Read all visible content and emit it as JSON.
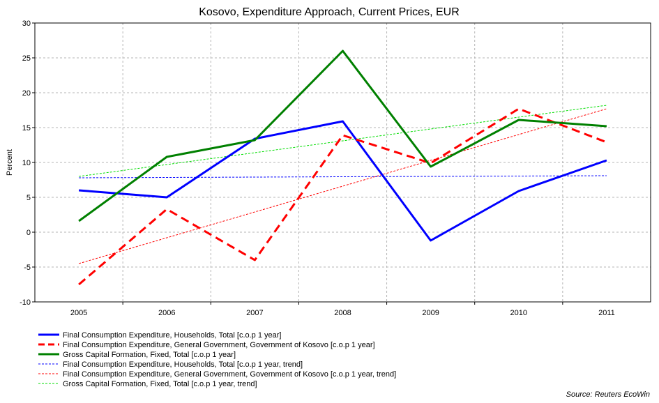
{
  "chart_data": {
    "type": "line",
    "title": "Kosovo, Expenditure Approach, Current Prices, EUR",
    "ylabel": "Percent",
    "xlabel": "",
    "x": [
      "2005",
      "2006",
      "2007",
      "2008",
      "2009",
      "2010",
      "2011"
    ],
    "ylim": [
      -10,
      30
    ],
    "yticks": [
      -10,
      -5,
      0,
      5,
      10,
      15,
      20,
      25,
      30
    ],
    "grid": true,
    "legend_position": "bottom",
    "series": [
      {
        "name": "Final Consumption Expenditure, Households, Total [c.o.p 1 year]",
        "values": [
          6.0,
          5.0,
          13.4,
          15.9,
          -1.2,
          5.9,
          10.3
        ],
        "color": "#0000ff",
        "style": "solid",
        "width": 3
      },
      {
        "name": "Final Consumption Expenditure, General Government, Government of Kosovo [c.o.p 1 year]",
        "values": [
          -7.5,
          3.3,
          -4.0,
          13.9,
          9.9,
          17.7,
          12.9
        ],
        "color": "#ff0000",
        "style": "dashed",
        "width": 3
      },
      {
        "name": "Gross Capital Formation, Fixed, Total [c.o.p 1 year]",
        "values": [
          1.6,
          10.8,
          13.2,
          26.0,
          9.4,
          16.1,
          15.2
        ],
        "color": "#008000",
        "style": "solid",
        "width": 3
      },
      {
        "name": "Final Consumption Expenditure, Households, Total [c.o.p 1 year, trend]",
        "values": [
          7.8,
          7.85,
          7.9,
          7.95,
          8.0,
          8.05,
          8.1
        ],
        "color": "#0000ff",
        "style": "dotted",
        "width": 1
      },
      {
        "name": "Final Consumption Expenditure, General Government, Government of Kosovo [c.o.p 1 year, trend]",
        "values": [
          -4.5,
          -0.8,
          2.9,
          6.6,
          10.3,
          14.0,
          17.7
        ],
        "color": "#ff0000",
        "style": "dotted",
        "width": 1
      },
      {
        "name": "Gross Capital Formation, Fixed, Total [c.o.p 1 year, trend]",
        "values": [
          8.0,
          9.7,
          11.4,
          13.1,
          14.8,
          16.5,
          18.2
        ],
        "color": "#00dd00",
        "style": "dotted",
        "width": 1
      }
    ],
    "source": "Source: Reuters EcoWin"
  }
}
